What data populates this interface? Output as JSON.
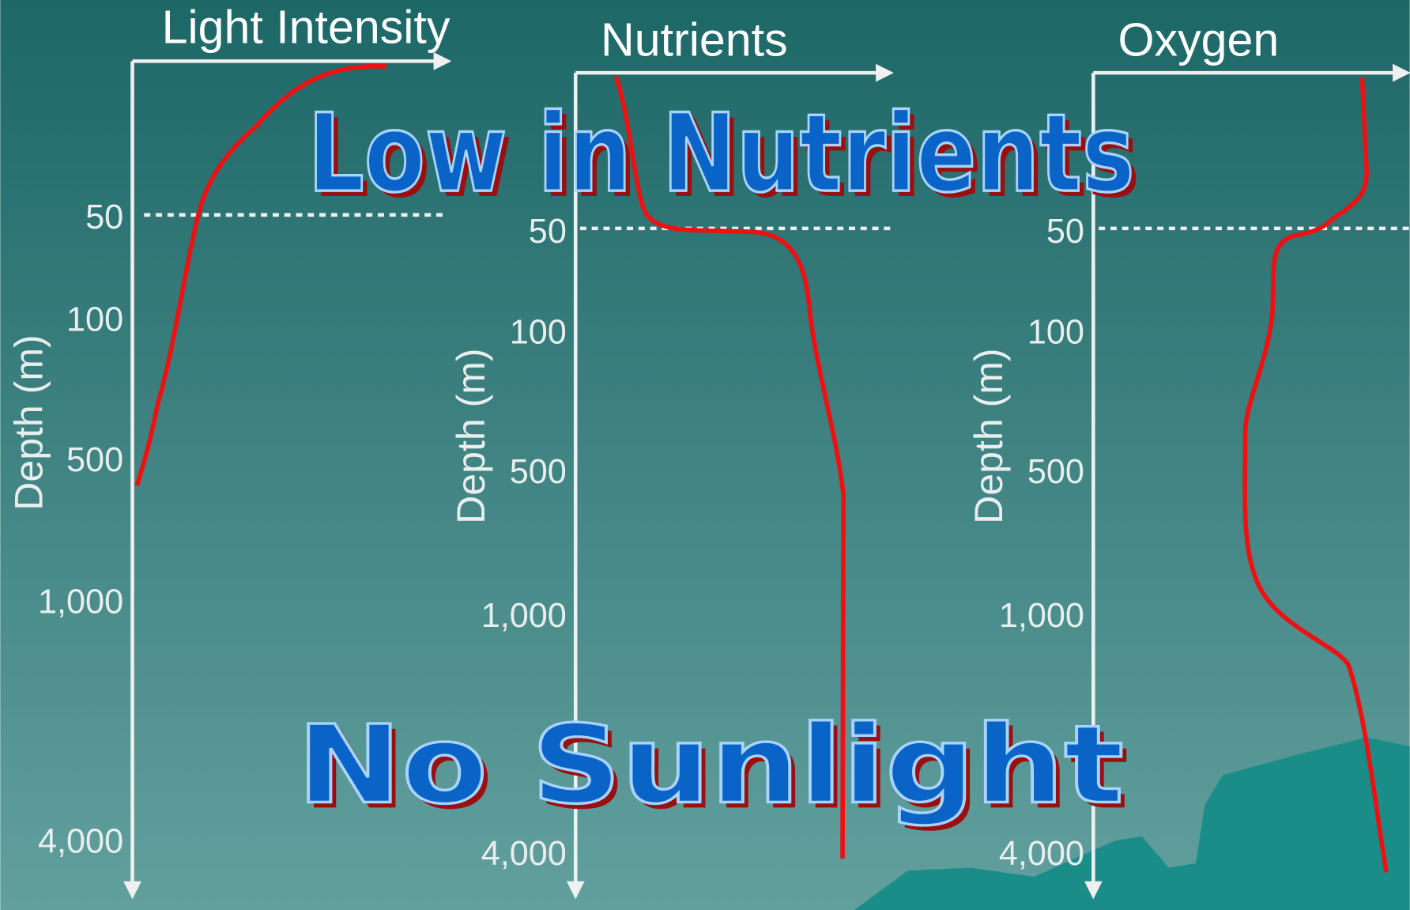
{
  "panels": [
    {
      "title": "Light Intensity",
      "y_label": "Depth (m)",
      "ticks": [
        "50",
        "100",
        "500",
        "1,000",
        "4,000"
      ]
    },
    {
      "title": "Nutrients",
      "y_label": "Depth (m)",
      "ticks": [
        "50",
        "100",
        "500",
        "1,000",
        "4,000"
      ]
    },
    {
      "title": "Oxygen",
      "y_label": "Depth (m)",
      "ticks": [
        "50",
        "100",
        "500",
        "1,000",
        "4,000"
      ]
    }
  ],
  "overlays": {
    "top": "Low in Nutrients",
    "bottom": "No Sunlight"
  }
}
